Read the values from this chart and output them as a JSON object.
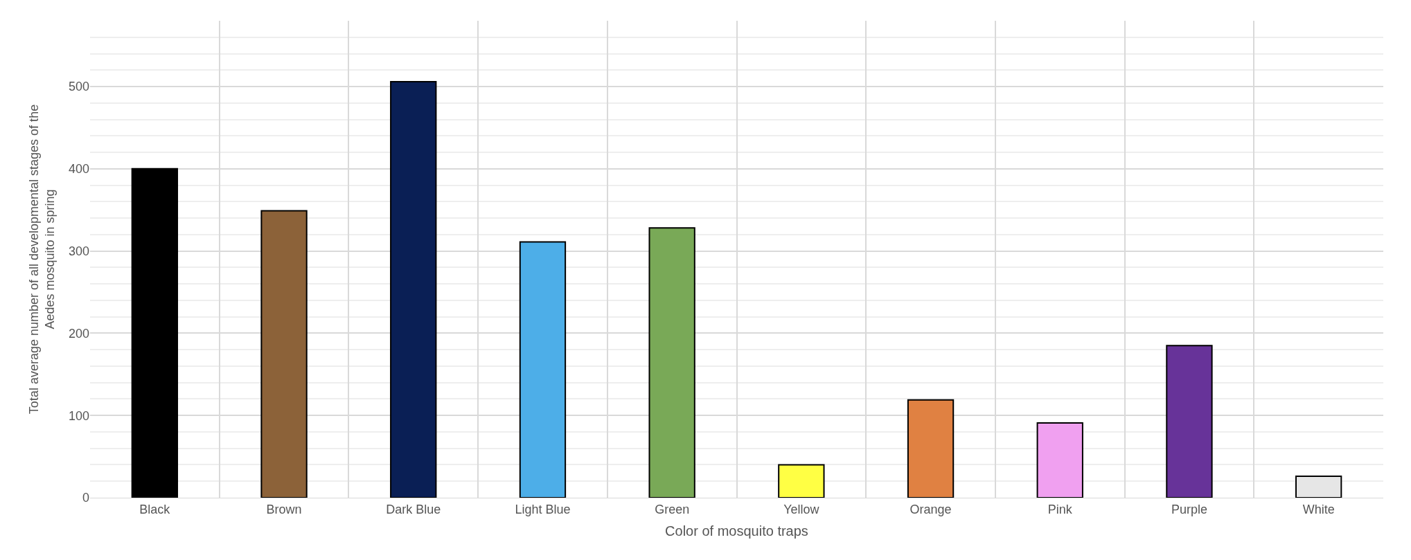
{
  "chart_data": {
    "type": "bar",
    "xlabel": "Color of mosquito traps",
    "ylabel": "Total average number of all developmental stages of the Aedes mosquito in spring",
    "categories": [
      "Black",
      "Brown",
      "Dark Blue",
      "Light Blue",
      "Green",
      "Yellow",
      "Orange",
      "Pink",
      "Purple",
      "White"
    ],
    "values": [
      400,
      349,
      506,
      311,
      328,
      40,
      119,
      91,
      185,
      26
    ],
    "colors": [
      "#000000",
      "#8c6239",
      "#0a1f55",
      "#4daee8",
      "#79a957",
      "#ffff44",
      "#e08142",
      "#f0a0f0",
      "#673399",
      "#e6e6e6"
    ],
    "ylim": [
      0,
      580
    ],
    "yticks": [
      0,
      100,
      200,
      300,
      400,
      500
    ],
    "grid": true
  }
}
